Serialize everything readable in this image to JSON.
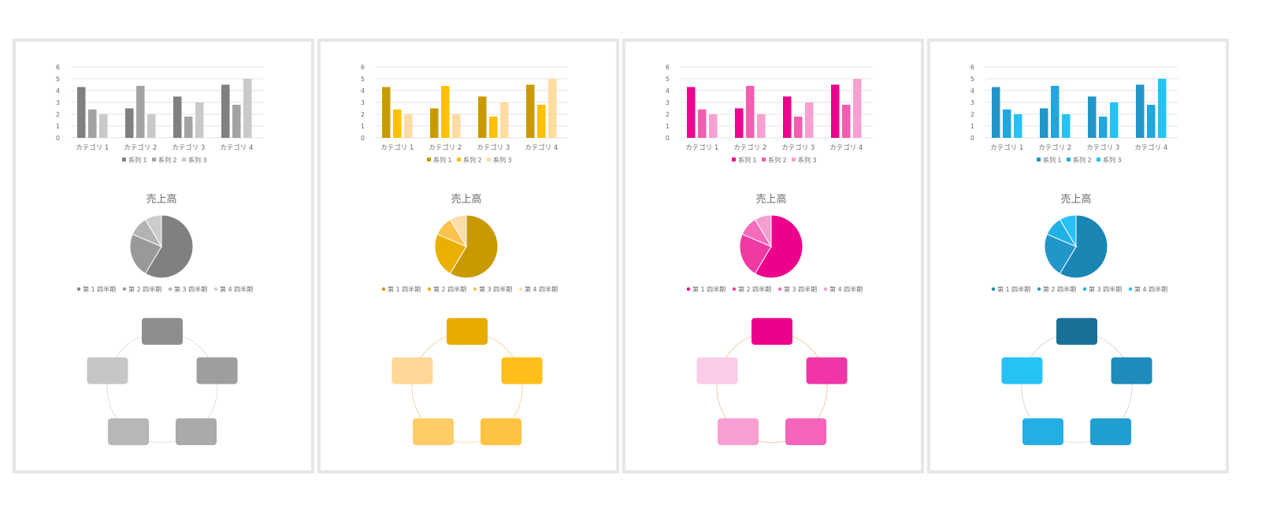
{
  "chart_data": [
    {
      "type": "bar",
      "theme": "gray",
      "categories": [
        "カテゴリ 1",
        "カテゴリ 2",
        "カテゴリ 3",
        "カテゴリ 4"
      ],
      "series": [
        {
          "name": "系列 1",
          "values": [
            4.3,
            2.5,
            3.5,
            4.5
          ]
        },
        {
          "name": "系列 2",
          "values": [
            2.4,
            4.4,
            1.8,
            2.8
          ]
        },
        {
          "name": "系列 3",
          "values": [
            2,
            2,
            3,
            5
          ]
        }
      ],
      "yticks": [
        "0",
        "1",
        "2",
        "3",
        "4",
        "5",
        "6"
      ],
      "ylim": [
        0,
        6
      ],
      "grid": true,
      "legend": "bottom",
      "colors": [
        "#808080",
        "#a3a3a3",
        "#c9c9c9"
      ]
    },
    {
      "type": "pie",
      "theme": "gray",
      "title": "売上高",
      "labels": [
        "第 1 四半期",
        "第 2 四半期",
        "第 3 四半期",
        "第 4 四半期"
      ],
      "values": [
        8.2,
        3.2,
        1.4,
        1.2
      ],
      "legend": "bottom",
      "colors": [
        "#808080",
        "#999999",
        "#b3b3b3",
        "#cccccc"
      ]
    },
    {
      "type": "diagram",
      "theme": "gray",
      "shapes": 5,
      "colors": [
        "#8e8e8e",
        "#9e9e9e",
        "#aaaaaa",
        "#b7b7b7",
        "#c6c6c6"
      ],
      "ring_color": "#e0e0e0"
    },
    {
      "type": "bar",
      "theme": "gold",
      "categories": [
        "カテゴリ 1",
        "カテゴリ 2",
        "カテゴリ 3",
        "カテゴリ 4"
      ],
      "series": [
        {
          "name": "系列 1",
          "values": [
            4.3,
            2.5,
            3.5,
            4.5
          ]
        },
        {
          "name": "系列 2",
          "values": [
            2.4,
            4.4,
            1.8,
            2.8
          ]
        },
        {
          "name": "系列 3",
          "values": [
            2,
            2,
            3,
            5
          ]
        }
      ],
      "yticks": [
        "0",
        "1",
        "2",
        "3",
        "4",
        "5",
        "6"
      ],
      "ylim": [
        0,
        6
      ],
      "grid": true,
      "legend": "bottom",
      "colors": [
        "#c99a00",
        "#ffc000",
        "#ffdca0"
      ]
    },
    {
      "type": "pie",
      "theme": "gold",
      "title": "売上高",
      "labels": [
        "第 1 四半期",
        "第 2 四半期",
        "第 3 四半期",
        "第 4 四半期"
      ],
      "values": [
        8.2,
        3.2,
        1.4,
        1.2
      ],
      "legend": "bottom",
      "colors": [
        "#c99a00",
        "#eab000",
        "#fcc24e",
        "#fdddab"
      ]
    },
    {
      "type": "diagram",
      "theme": "gold",
      "shapes": 5,
      "colors": [
        "#e8ac00",
        "#ffbe19",
        "#ffc342",
        "#ffcc66",
        "#ffd797"
      ],
      "ring_color": "#f7d6a6"
    },
    {
      "type": "bar",
      "theme": "pink",
      "categories": [
        "カテゴリ 1",
        "カテゴリ 2",
        "カテゴリ 3",
        "カテゴリ 4"
      ],
      "series": [
        {
          "name": "系列 1",
          "values": [
            4.3,
            2.5,
            3.5,
            4.5
          ]
        },
        {
          "name": "系列 2",
          "values": [
            2.4,
            4.4,
            1.8,
            2.8
          ]
        },
        {
          "name": "系列 3",
          "values": [
            2,
            2,
            3,
            5
          ]
        }
      ],
      "yticks": [
        "0",
        "1",
        "2",
        "3",
        "4",
        "5",
        "6"
      ],
      "ylim": [
        0,
        6
      ],
      "grid": true,
      "legend": "bottom",
      "colors": [
        "#ec008c",
        "#f15db0",
        "#f7a1d1"
      ]
    },
    {
      "type": "pie",
      "theme": "pink",
      "title": "売上高",
      "labels": [
        "第 1 四半期",
        "第 2 四半期",
        "第 3 四半期",
        "第 4 四半期"
      ],
      "values": [
        8.2,
        3.2,
        1.4,
        1.2
      ],
      "legend": "bottom",
      "colors": [
        "#ec008c",
        "#f03aa3",
        "#f46cba",
        "#f89fd1"
      ]
    },
    {
      "type": "diagram",
      "theme": "pink",
      "shapes": 5,
      "colors": [
        "#ec008c",
        "#f036a6",
        "#f464ba",
        "#f89ed2",
        "#fccbe7"
      ],
      "ring_color": "#f7c7a3"
    },
    {
      "type": "bar",
      "theme": "blue",
      "categories": [
        "カテゴリ 1",
        "カテゴリ 2",
        "カテゴリ 3",
        "カテゴリ 4"
      ],
      "series": [
        {
          "name": "系列 1",
          "values": [
            4.3,
            2.5,
            3.5,
            4.5
          ]
        },
        {
          "name": "系列 2",
          "values": [
            2.4,
            4.4,
            1.8,
            2.8
          ]
        },
        {
          "name": "系列 3",
          "values": [
            2,
            2,
            3,
            5
          ]
        }
      ],
      "yticks": [
        "0",
        "1",
        "2",
        "3",
        "4",
        "5",
        "6"
      ],
      "ylim": [
        0,
        6
      ],
      "grid": true,
      "legend": "bottom",
      "colors": [
        "#2196c9",
        "#1fa7e0",
        "#26c2f6"
      ]
    },
    {
      "type": "pie",
      "theme": "blue",
      "title": "売上高",
      "labels": [
        "第 1 四半期",
        "第 2 四半期",
        "第 3 四半期",
        "第 4 四半期"
      ],
      "values": [
        8.2,
        3.2,
        1.4,
        1.2
      ],
      "legend": "bottom",
      "colors": [
        "#1a86b4",
        "#2196c9",
        "#1fb0e6",
        "#26c2f6"
      ]
    },
    {
      "type": "diagram",
      "theme": "blue",
      "shapes": 5,
      "colors": [
        "#1a6f96",
        "#1d8cba",
        "#219fd1",
        "#23afe5",
        "#26c2f6"
      ],
      "ring_color": "#d9d9d9"
    }
  ]
}
